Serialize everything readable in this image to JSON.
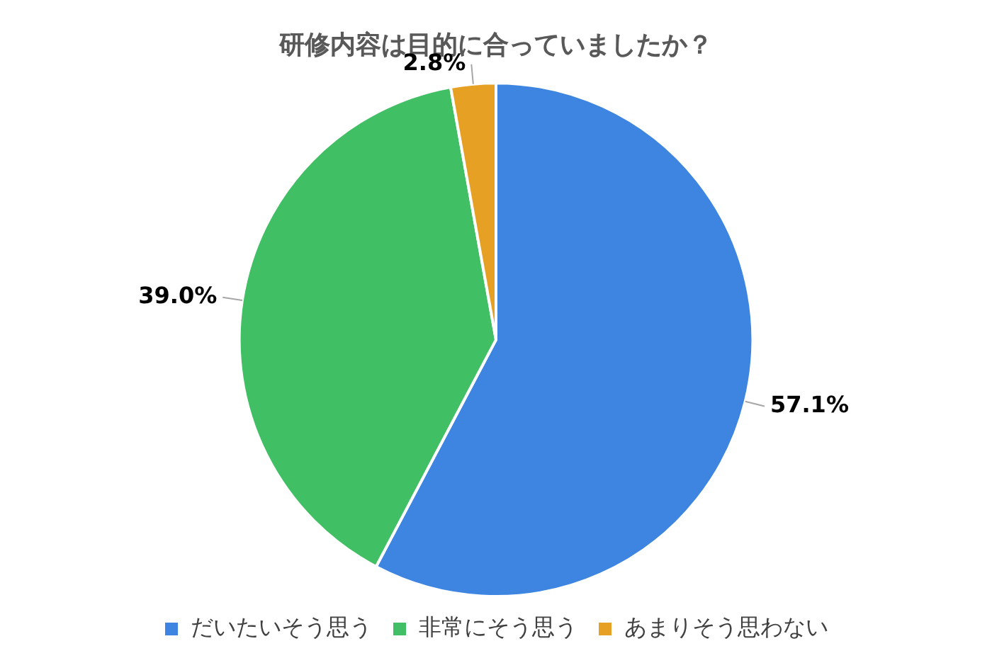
{
  "chart_data": {
    "type": "pie",
    "title": "研修内容は目的に合っていましたか？",
    "categories": [
      "だいたいそう思う",
      "非常にそう思う",
      "あまりそう思わない"
    ],
    "values": [
      57.1,
      39.0,
      2.8
    ],
    "colors": [
      "#3d85e0",
      "#40bf64",
      "#e6a024"
    ],
    "value_labels": [
      "57.1%",
      "39.0%",
      "2.8%"
    ],
    "legend": "bottom"
  }
}
